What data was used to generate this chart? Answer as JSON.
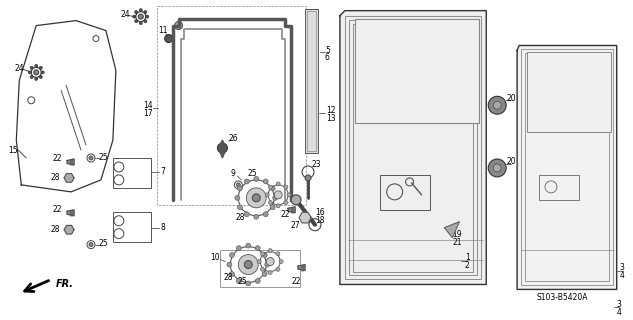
{
  "bg_color": "#ffffff",
  "figsize": [
    6.33,
    3.2
  ],
  "dpi": 100,
  "catalog_num": "S103-B5420A"
}
